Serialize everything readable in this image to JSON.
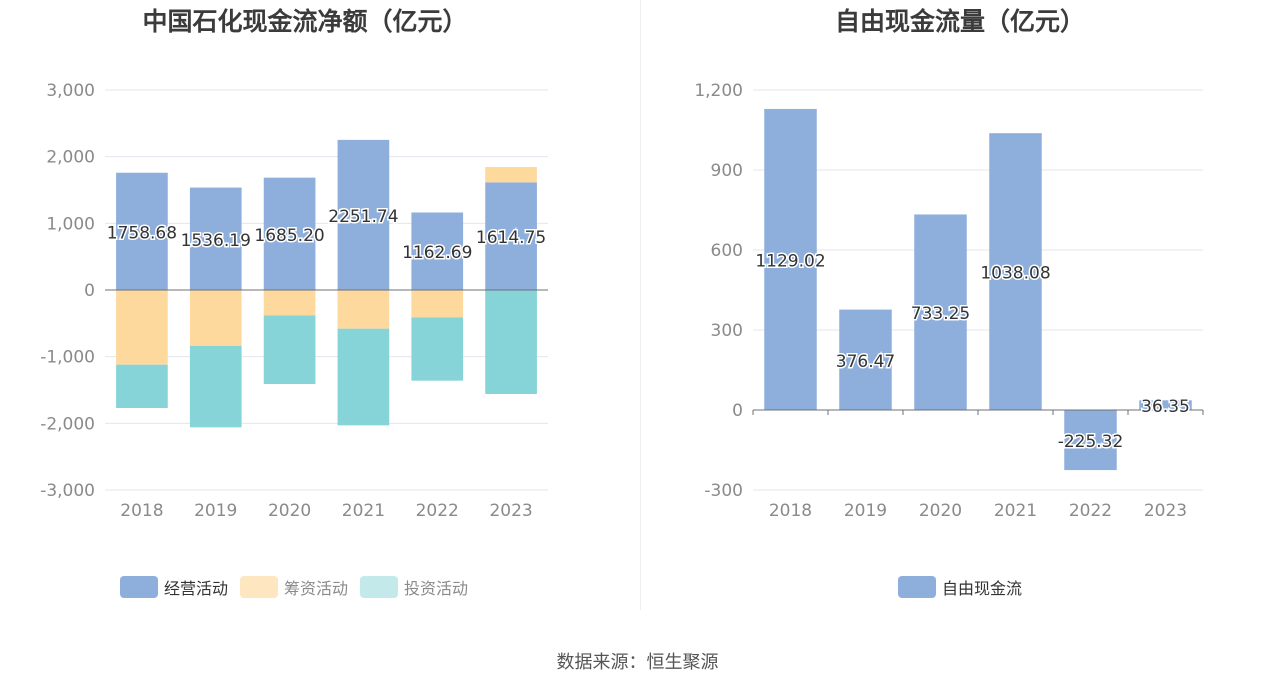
{
  "source_label": "数据来源：恒生聚源",
  "chart_data": [
    {
      "type": "bar",
      "stacked": true,
      "title": "中国石化现金流净额（亿元）",
      "categories": [
        "2018",
        "2019",
        "2020",
        "2021",
        "2022",
        "2023"
      ],
      "ylim": [
        -3000,
        3000
      ],
      "yticks": [
        -3000,
        -2000,
        -1000,
        0,
        1000,
        2000,
        3000
      ],
      "ytick_labels": [
        "-3,000",
        "-2,000",
        "-1,000",
        "0",
        "1,000",
        "2,000",
        "3,000"
      ],
      "series": [
        {
          "name": "经营活动",
          "color": "#8eaedb",
          "values": [
            1758.68,
            1536.19,
            1685.2,
            2251.74,
            1162.69,
            1614.75
          ],
          "labels": [
            "1758.68",
            "1536.19",
            "1685.20",
            "2251.74",
            "1162.69",
            "1614.75"
          ]
        },
        {
          "name": "筹资活动",
          "color": "#fdd99e",
          "values": [
            -1120,
            -840,
            -380,
            -580,
            -410,
            230
          ]
        },
        {
          "name": "投资活动",
          "color": "#86d4d8",
          "values": [
            -650,
            -1220,
            -1030,
            -1450,
            -950,
            -1560
          ]
        }
      ],
      "grid": true,
      "legend_position": "bottom"
    },
    {
      "type": "bar",
      "title": "自由现金流量（亿元）",
      "categories": [
        "2018",
        "2019",
        "2020",
        "2021",
        "2022",
        "2023"
      ],
      "ylim": [
        -300,
        1200
      ],
      "yticks": [
        -300,
        0,
        300,
        600,
        900,
        1200
      ],
      "ytick_labels": [
        "-300",
        "0",
        "300",
        "600",
        "900",
        "1,200"
      ],
      "series": [
        {
          "name": "自由现金流",
          "color": "#8eaedb",
          "values": [
            1129.02,
            376.47,
            733.25,
            1038.08,
            -225.32,
            36.35
          ],
          "labels": [
            "1129.02",
            "376.47",
            "733.25",
            "1038.08",
            "-225.32",
            "36.35"
          ]
        }
      ],
      "grid": true,
      "legend_position": "bottom"
    }
  ]
}
